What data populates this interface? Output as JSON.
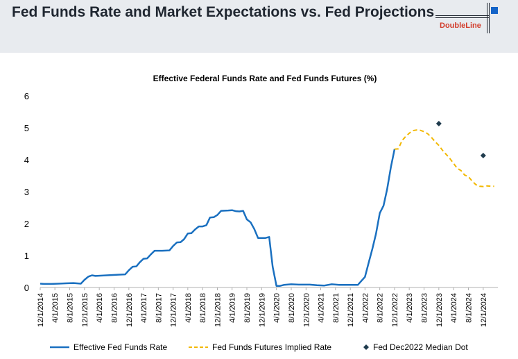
{
  "header": {
    "title": "Fed Funds Rate and Market Expectations vs. Fed Projections",
    "logo_text": "DoubleLine"
  },
  "colors": {
    "header_bg": "#e8ebef",
    "effective": "#1a70c0",
    "futures": "#f2b800",
    "dot": "#1f3b4d"
  },
  "chart_data": {
    "type": "line",
    "title": "Effective Federal Funds Rate and Fed Funds Futures (%)",
    "ylim": [
      0,
      6
    ],
    "yticks": [
      0,
      1,
      2,
      3,
      4,
      5,
      6
    ],
    "xlim": [
      "2014-12-01",
      "2025-04-01"
    ],
    "xtick_labels": [
      "12/1/2014",
      "4/1/2015",
      "8/1/2015",
      "12/1/2015",
      "4/1/2016",
      "8/1/2016",
      "12/1/2016",
      "4/1/2017",
      "8/1/2017",
      "12/1/2017",
      "4/1/2018",
      "8/1/2018",
      "12/1/2018",
      "4/1/2019",
      "8/1/2019",
      "12/1/2019",
      "4/1/2020",
      "8/1/2020",
      "12/1/2020",
      "4/1/2021",
      "8/1/2021",
      "12/1/2021",
      "4/1/2022",
      "8/1/2022",
      "12/1/2022",
      "4/1/2023",
      "8/1/2023",
      "12/1/2023",
      "4/1/2024",
      "8/1/2024",
      "12/1/2024"
    ],
    "grid": false,
    "legend_position": "bottom",
    "series": [
      {
        "name": "Effective Fed Funds Rate",
        "style": "solid",
        "points": [
          [
            "2014-12-01",
            0.12
          ],
          [
            "2015-01-01",
            0.11
          ],
          [
            "2015-03-01",
            0.11
          ],
          [
            "2015-05-01",
            0.12
          ],
          [
            "2015-07-01",
            0.13
          ],
          [
            "2015-09-01",
            0.14
          ],
          [
            "2015-11-01",
            0.12
          ],
          [
            "2015-12-01",
            0.24
          ],
          [
            "2016-01-01",
            0.34
          ],
          [
            "2016-02-01",
            0.38
          ],
          [
            "2016-03-01",
            0.36
          ],
          [
            "2016-06-01",
            0.38
          ],
          [
            "2016-09-01",
            0.4
          ],
          [
            "2016-11-01",
            0.41
          ],
          [
            "2016-12-01",
            0.54
          ],
          [
            "2017-01-01",
            0.65
          ],
          [
            "2017-02-01",
            0.66
          ],
          [
            "2017-03-01",
            0.79
          ],
          [
            "2017-04-01",
            0.9
          ],
          [
            "2017-05-01",
            0.91
          ],
          [
            "2017-06-01",
            1.04
          ],
          [
            "2017-07-01",
            1.15
          ],
          [
            "2017-09-01",
            1.15
          ],
          [
            "2017-11-01",
            1.16
          ],
          [
            "2017-12-01",
            1.3
          ],
          [
            "2018-01-01",
            1.41
          ],
          [
            "2018-02-01",
            1.42
          ],
          [
            "2018-03-01",
            1.51
          ],
          [
            "2018-04-01",
            1.69
          ],
          [
            "2018-05-01",
            1.7
          ],
          [
            "2018-06-01",
            1.82
          ],
          [
            "2018-07-01",
            1.91
          ],
          [
            "2018-08-01",
            1.91
          ],
          [
            "2018-09-01",
            1.95
          ],
          [
            "2018-10-01",
            2.19
          ],
          [
            "2018-11-01",
            2.2
          ],
          [
            "2018-12-01",
            2.27
          ],
          [
            "2019-01-01",
            2.4
          ],
          [
            "2019-03-01",
            2.41
          ],
          [
            "2019-04-01",
            2.42
          ],
          [
            "2019-05-01",
            2.39
          ],
          [
            "2019-06-01",
            2.38
          ],
          [
            "2019-07-01",
            2.4
          ],
          [
            "2019-08-01",
            2.13
          ],
          [
            "2019-09-01",
            2.04
          ],
          [
            "2019-10-01",
            1.83
          ],
          [
            "2019-11-01",
            1.55
          ],
          [
            "2019-12-01",
            1.55
          ],
          [
            "2020-01-01",
            1.55
          ],
          [
            "2020-02-01",
            1.58
          ],
          [
            "2020-03-01",
            0.65
          ],
          [
            "2020-04-01",
            0.05
          ],
          [
            "2020-05-01",
            0.05
          ],
          [
            "2020-06-01",
            0.08
          ],
          [
            "2020-08-01",
            0.1
          ],
          [
            "2020-10-01",
            0.09
          ],
          [
            "2021-01-01",
            0.09
          ],
          [
            "2021-03-01",
            0.07
          ],
          [
            "2021-05-01",
            0.06
          ],
          [
            "2021-07-01",
            0.1
          ],
          [
            "2021-09-01",
            0.08
          ],
          [
            "2021-12-01",
            0.08
          ],
          [
            "2022-02-01",
            0.08
          ],
          [
            "2022-03-01",
            0.2
          ],
          [
            "2022-04-01",
            0.33
          ],
          [
            "2022-05-01",
            0.77
          ],
          [
            "2022-06-01",
            1.21
          ],
          [
            "2022-07-01",
            1.68
          ],
          [
            "2022-08-01",
            2.33
          ],
          [
            "2022-09-01",
            2.56
          ],
          [
            "2022-10-01",
            3.08
          ],
          [
            "2022-11-01",
            3.78
          ],
          [
            "2022-12-01",
            4.33
          ]
        ]
      },
      {
        "name": "Fed Funds Futures Implied Rate",
        "style": "dashed",
        "points": [
          [
            "2022-12-01",
            4.33
          ],
          [
            "2023-01-01",
            4.34
          ],
          [
            "2023-02-01",
            4.6
          ],
          [
            "2023-03-01",
            4.72
          ],
          [
            "2023-04-01",
            4.83
          ],
          [
            "2023-05-01",
            4.91
          ],
          [
            "2023-06-01",
            4.93
          ],
          [
            "2023-07-01",
            4.92
          ],
          [
            "2023-08-01",
            4.88
          ],
          [
            "2023-09-01",
            4.81
          ],
          [
            "2023-10-01",
            4.7
          ],
          [
            "2023-11-01",
            4.56
          ],
          [
            "2023-12-01",
            4.45
          ],
          [
            "2024-01-01",
            4.29
          ],
          [
            "2024-02-01",
            4.16
          ],
          [
            "2024-03-01",
            4.04
          ],
          [
            "2024-04-01",
            3.88
          ],
          [
            "2024-05-01",
            3.73
          ],
          [
            "2024-06-01",
            3.66
          ],
          [
            "2024-07-01",
            3.52
          ],
          [
            "2024-08-01",
            3.47
          ],
          [
            "2024-09-01",
            3.33
          ],
          [
            "2024-10-01",
            3.22
          ],
          [
            "2024-11-01",
            3.17
          ],
          [
            "2024-12-01",
            3.16
          ],
          [
            "2025-01-01",
            3.18
          ],
          [
            "2025-02-01",
            3.17
          ],
          [
            "2025-03-01",
            3.17
          ]
        ]
      },
      {
        "name": "Fed Dec2022 Median Dot",
        "style": "marker",
        "points": [
          [
            "2023-12-01",
            5.13
          ],
          [
            "2024-12-01",
            4.13
          ]
        ]
      }
    ]
  }
}
